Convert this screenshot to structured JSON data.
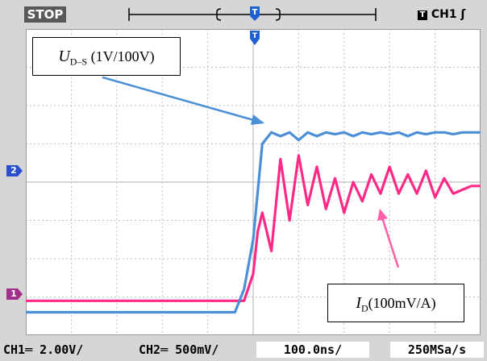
{
  "status": {
    "run_state": "STOP",
    "trigger": "CH1 ʃ"
  },
  "bottom": {
    "ch1_scale": "CH1═ 2.00V/",
    "ch2_scale": "CH2═ 500mV/",
    "timebase": "100.0ns/",
    "sample_rate": "250MSa/s"
  },
  "markers": {
    "ch1": "1",
    "ch2": "2"
  },
  "labels": {
    "uds_sym": "U",
    "uds_sub": "D–S",
    "uds_scale": " (1V/100V)",
    "id_sym": "I",
    "id_sub": "D",
    "id_scale": "(100mV/A)"
  },
  "colors": {
    "ch1": "#ff2a86",
    "ch2": "#4b8fd6",
    "screen_bg": "#ffffff",
    "grid": "#bfbfbf",
    "arrow_uds": "#4b8fd6",
    "arrow_id": "#ff5fa8"
  },
  "chart_data": {
    "type": "line",
    "x_unit": "ns",
    "xlim": [
      -500,
      500
    ],
    "ylim": [
      -4,
      4
    ],
    "grid": true,
    "series": [
      {
        "channel": "CH1",
        "x": [
          -500,
          -40,
          -20,
          0,
          10,
          20,
          40,
          60,
          80,
          100,
          120,
          140,
          160,
          180,
          200,
          220,
          240,
          260,
          280,
          300,
          320,
          340,
          360,
          380,
          400,
          420,
          440,
          460,
          480,
          500
        ],
        "values": [
          -3.1,
          -3.1,
          -3.1,
          -2.4,
          -1.3,
          -0.8,
          -1.8,
          0.6,
          -1.0,
          0.7,
          -0.6,
          0.4,
          -0.7,
          0.1,
          -0.8,
          0.0,
          -0.5,
          0.2,
          -0.3,
          0.4,
          -0.3,
          0.2,
          -0.3,
          0.3,
          -0.4,
          0.1,
          -0.3,
          -0.2,
          -0.1,
          -0.1
        ]
      },
      {
        "channel": "CH2",
        "x": [
          -500,
          -60,
          -40,
          -20,
          0,
          20,
          40,
          60,
          80,
          100,
          120,
          140,
          160,
          180,
          200,
          220,
          240,
          260,
          280,
          300,
          320,
          340,
          360,
          380,
          400,
          420,
          440,
          460,
          480,
          500
        ],
        "values": [
          -3.4,
          -3.4,
          -3.4,
          -2.8,
          -1.5,
          1.0,
          1.3,
          1.2,
          1.3,
          1.1,
          1.3,
          1.2,
          1.3,
          1.25,
          1.3,
          1.2,
          1.3,
          1.25,
          1.3,
          1.25,
          1.3,
          1.2,
          1.3,
          1.25,
          1.3,
          1.3,
          1.25,
          1.3,
          1.3,
          1.3
        ]
      }
    ]
  }
}
